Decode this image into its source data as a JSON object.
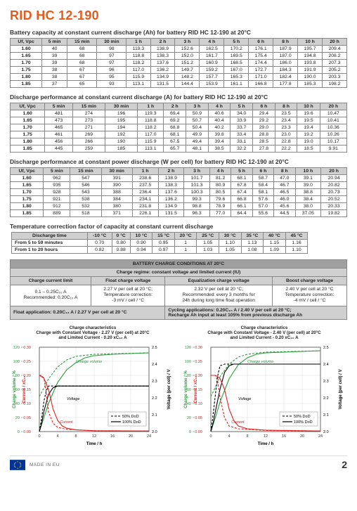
{
  "title": "RID HC 12-190",
  "headings": {
    "h1": "Battery capacity at constant current discharge (Ah) for battery RID HC 12-190 at 20°C",
    "h2": "Discharge performance at constant current discharge (A) for battery RID HC 12-190 at 20°C",
    "h3": "Discharge performance at constant power discharge (W per cell) for battery RID HC 12-190 at 20°C",
    "h4": "Temperature correction factor of capacity at constant current discharge"
  },
  "time_headers": [
    "5 min",
    "15 min",
    "30 min",
    "1 h",
    "2 h",
    "3 h",
    "4 h",
    "5 h",
    "6 h",
    "8 h",
    "10 h",
    "20 h"
  ],
  "ufvpc_label": "Uf, Vpc",
  "table1": {
    "rows": [
      [
        "1.60",
        "40",
        "68",
        "98",
        "119.3",
        "138.9",
        "152.6",
        "162.5",
        "170.2",
        "176.1",
        "187.9",
        "195.7",
        "209.4"
      ],
      [
        "1.65",
        "39",
        "68",
        "97",
        "118.8",
        "138.3",
        "152.0",
        "161.7",
        "169.5",
        "175.4",
        "187.0",
        "194.8",
        "208.2"
      ],
      [
        "1.70",
        "39",
        "68",
        "97",
        "118.2",
        "137.6",
        "151.2",
        "160.9",
        "168.5",
        "174.4",
        "186.0",
        "193.8",
        "207.3"
      ],
      [
        "1.75",
        "38",
        "67",
        "96",
        "117.0",
        "136.2",
        "149.7",
        "159.2",
        "167.0",
        "172.7",
        "184.3",
        "191.9",
        "205.2"
      ],
      [
        "1.80",
        "38",
        "67",
        "95",
        "115.9",
        "134.9",
        "148.2",
        "157.7",
        "165.3",
        "171.0",
        "182.4",
        "190.0",
        "203.3"
      ],
      [
        "1.85",
        "37",
        "65",
        "93",
        "113.1",
        "131.5",
        "144.4",
        "153.9",
        "161.1",
        "166.8",
        "177.8",
        "185.3",
        "198.2"
      ]
    ]
  },
  "table2": {
    "rows": [
      [
        "1.60",
        "481",
        "274",
        "196",
        "119.3",
        "69.4",
        "50.9",
        "40.6",
        "34.0",
        "29.4",
        "23.5",
        "19.6",
        "10.47"
      ],
      [
        "1.65",
        "473",
        "273",
        "195",
        "118.8",
        "69.2",
        "50.7",
        "40.4",
        "33.9",
        "29.2",
        "23.4",
        "19.5",
        "10.41"
      ],
      [
        "1.70",
        "465",
        "271",
        "194",
        "118.2",
        "68.8",
        "50.4",
        "40.2",
        "33.7",
        "29.0",
        "23.3",
        "19.4",
        "10.36"
      ],
      [
        "1.75",
        "461",
        "269",
        "192",
        "117.0",
        "68.1",
        "49.9",
        "39.8",
        "33.4",
        "28.8",
        "23.0",
        "19.2",
        "10.26"
      ],
      [
        "1.80",
        "456",
        "266",
        "190",
        "115.9",
        "67.5",
        "49.4",
        "39.4",
        "33.1",
        "28.5",
        "22.8",
        "19.0",
        "10.17"
      ],
      [
        "1.85",
        "445",
        "259",
        "185",
        "113.1",
        "65.7",
        "48.1",
        "38.5",
        "32.2",
        "27.8",
        "22.2",
        "18.5",
        "9.91"
      ]
    ]
  },
  "table3": {
    "rows": [
      [
        "1.60",
        "962",
        "547",
        "391",
        "238.6",
        "138.9",
        "101.7",
        "81.2",
        "68.1",
        "58.7",
        "47.0",
        "39.1",
        "20.94"
      ],
      [
        "1.65",
        "935",
        "546",
        "390",
        "237.5",
        "138.3",
        "101.3",
        "80.9",
        "67.8",
        "58.4",
        "46.7",
        "39.0",
        "20.82"
      ],
      [
        "1.70",
        "928",
        "543",
        "388",
        "236.4",
        "137.6",
        "100.3",
        "80.5",
        "67.4",
        "58.1",
        "46.5",
        "38.8",
        "20.73"
      ],
      [
        "1.75",
        "921",
        "538",
        "384",
        "234.1",
        "136.2",
        "99.3",
        "79.6",
        "66.8",
        "57.6",
        "46.0",
        "38.4",
        "20.52"
      ],
      [
        "1.80",
        "912",
        "532",
        "380",
        "231.8",
        "134.9",
        "98.8",
        "78.9",
        "66.1",
        "57.0",
        "45.6",
        "38.0",
        "20.33"
      ],
      [
        "1.85",
        "889",
        "518",
        "371",
        "226.1",
        "131.5",
        "96.3",
        "77.0",
        "64.4",
        "55.6",
        "44.5",
        "37.05",
        "19.82"
      ]
    ]
  },
  "temp_table": {
    "header_label": "Discharge time",
    "headers": [
      "-10 °C",
      "0 °C",
      "10 °C",
      "15 °C",
      "20 °C",
      "25 °C",
      "30 °C",
      "35 °C",
      "40 °C",
      "45 °C"
    ],
    "rows": [
      {
        "label": "From 5 to 59 minutes",
        "vals": [
          "0.70",
          "0.80",
          "0.90",
          "0.95",
          "1",
          "1.05",
          "1.10",
          "1.13",
          "1.15",
          "1.16"
        ]
      },
      {
        "label": "From 1 to 20 hours",
        "vals": [
          "0.82",
          "0.88",
          "0.94",
          "0.97",
          "1",
          "1.03",
          "1.05",
          "1.08",
          "1.09",
          "1.10"
        ]
      }
    ]
  },
  "cond": {
    "title": "BATTERY CHARGE CONDITIONS AT 20°C",
    "subtitle": "Charge regime: constant voltage and limited current (IU)",
    "col_headers": {
      "c1": "Charge current limit",
      "c2": "Float charge voltage",
      "c3": "Equalization charge voltage",
      "c4": "Boost charge voltage"
    },
    "row1": {
      "c1": "0.1 – 0.25C₁₀ A\nRecommended: 0.20C₁₀ A",
      "c2": "2.27 V per cell at 20 °C;\nTemperature correction:\n-3 mV / cell / °C",
      "c3": "2.32 V per cell at 20 °C;\nRecommended: every 3 months for\n24h during long time float operation",
      "c4": "2.40 V per cell at 20 °C\nTemperature correction:\n-4 mV / cell / °C"
    },
    "row2_left": "Float application: 0.20C₁₀ A / 2.27 V per cell at 20 °C",
    "row2_right": "Cycling applications: 0.20C₁₀ A / 2.40 V per cell at 20 °C;\nRecharge Ah input at least 105% from previous discharge Ah"
  },
  "charts": {
    "left_title": "Charge characteristics\nCharge with Constant Voltage - 2.27 V (per cell) at 20°C\nand Limited Current - 0.20 xC₁₀ A",
    "right_title": "Charge characteristics\nCharge with Constant Voltage - 2.40 V (per cell) at 20°C\nand Limited Current - 0.20 xC₁₀ A",
    "y_left_label": "Charge volume / %",
    "y_mid_label": "Current / xC₁₀",
    "y_right_label": "Voltage (per cell) / V",
    "x_label": "Time / h",
    "legend": {
      "a": "50% DoD",
      "b": "100% DoD"
    },
    "series_labels": {
      "cv": "Charge volume",
      "v": "Voltage",
      "c": "Current"
    },
    "colors": {
      "green": "#2a9d3b",
      "red": "#e02020",
      "black": "#000000",
      "grid": "#dddddd",
      "axis": "#333333"
    },
    "left": {
      "current_solid": [
        [
          0,
          0.2
        ],
        [
          1,
          0.19
        ],
        [
          2,
          0.15
        ],
        [
          3,
          0.08
        ],
        [
          4,
          0.04
        ],
        [
          5,
          0.02
        ],
        [
          6,
          0.012
        ],
        [
          8,
          0.006
        ],
        [
          12,
          0.003
        ],
        [
          24,
          0.002
        ]
      ],
      "current_dash": [
        [
          0,
          0.2
        ],
        [
          0.5,
          0.2
        ],
        [
          1,
          0.19
        ],
        [
          1.5,
          0.14
        ],
        [
          2,
          0.07
        ],
        [
          3,
          0.03
        ],
        [
          4,
          0.015
        ],
        [
          6,
          0.008
        ],
        [
          12,
          0.003
        ],
        [
          24,
          0.002
        ]
      ],
      "voltage_solid": [
        [
          0,
          2.0
        ],
        [
          0.5,
          2.05
        ],
        [
          1,
          2.12
        ],
        [
          2,
          2.22
        ],
        [
          3,
          2.26
        ],
        [
          4,
          2.27
        ],
        [
          24,
          2.27
        ]
      ],
      "voltage_dash": [
        [
          0,
          2.0
        ],
        [
          0.5,
          2.08
        ],
        [
          1,
          2.18
        ],
        [
          1.5,
          2.24
        ],
        [
          2,
          2.27
        ],
        [
          24,
          2.27
        ]
      ],
      "volume_solid": [
        [
          0,
          0
        ],
        [
          1,
          20
        ],
        [
          2,
          40
        ],
        [
          4,
          70
        ],
        [
          6,
          88
        ],
        [
          8,
          98
        ],
        [
          10,
          105
        ],
        [
          12,
          108
        ],
        [
          16,
          110
        ],
        [
          24,
          112
        ]
      ],
      "volume_dash": [
        [
          0,
          50
        ],
        [
          1,
          62
        ],
        [
          2,
          75
        ],
        [
          4,
          92
        ],
        [
          6,
          102
        ],
        [
          8,
          107
        ],
        [
          12,
          110
        ],
        [
          24,
          112
        ]
      ]
    },
    "right": {
      "current_solid": [
        [
          0,
          0.2
        ],
        [
          1,
          0.2
        ],
        [
          2,
          0.19
        ],
        [
          3,
          0.15
        ],
        [
          4,
          0.08
        ],
        [
          5,
          0.04
        ],
        [
          6,
          0.02
        ],
        [
          8,
          0.01
        ],
        [
          12,
          0.005
        ],
        [
          24,
          0.002
        ]
      ],
      "current_dash": [
        [
          0,
          0.2
        ],
        [
          0.5,
          0.2
        ],
        [
          1,
          0.2
        ],
        [
          1.5,
          0.18
        ],
        [
          2,
          0.12
        ],
        [
          3,
          0.05
        ],
        [
          4,
          0.02
        ],
        [
          6,
          0.01
        ],
        [
          12,
          0.004
        ],
        [
          24,
          0.002
        ]
      ],
      "voltage_solid": [
        [
          0,
          2.0
        ],
        [
          0.5,
          2.05
        ],
        [
          1,
          2.12
        ],
        [
          2,
          2.25
        ],
        [
          3,
          2.35
        ],
        [
          4,
          2.39
        ],
        [
          5,
          2.4
        ],
        [
          24,
          2.4
        ]
      ],
      "voltage_dash": [
        [
          0,
          2.0
        ],
        [
          0.5,
          2.1
        ],
        [
          1,
          2.22
        ],
        [
          1.5,
          2.33
        ],
        [
          2,
          2.39
        ],
        [
          3,
          2.4
        ],
        [
          24,
          2.4
        ]
      ],
      "volume_solid": [
        [
          0,
          0
        ],
        [
          1,
          20
        ],
        [
          2,
          42
        ],
        [
          4,
          75
        ],
        [
          6,
          95
        ],
        [
          8,
          105
        ],
        [
          10,
          110
        ],
        [
          12,
          112
        ],
        [
          24,
          115
        ]
      ],
      "volume_dash": [
        [
          0,
          50
        ],
        [
          1,
          63
        ],
        [
          2,
          78
        ],
        [
          4,
          96
        ],
        [
          6,
          106
        ],
        [
          8,
          110
        ],
        [
          12,
          113
        ],
        [
          24,
          115
        ]
      ]
    },
    "axes": {
      "x": {
        "min": 0,
        "max": 24,
        "ticks": [
          0,
          4,
          8,
          12,
          16,
          20,
          24
        ]
      },
      "vol": {
        "min": 0,
        "max": 120,
        "ticks": [
          0,
          20,
          40,
          60,
          80,
          100,
          120
        ]
      },
      "cur": {
        "min": 0,
        "max": 0.3,
        "ticks": [
          0.0,
          0.05,
          0.1,
          0.15,
          0.2,
          0.25,
          0.3
        ]
      },
      "volt": {
        "min": 2.0,
        "max": 2.5,
        "ticks": [
          2.0,
          2.1,
          2.2,
          2.3,
          2.4,
          2.5
        ]
      }
    }
  },
  "footer": {
    "made": "MADE IN EU",
    "page": "2"
  }
}
